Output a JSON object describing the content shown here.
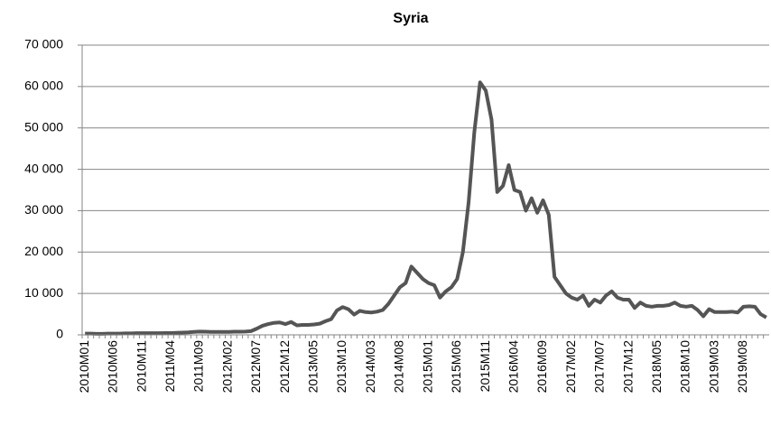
{
  "chart_data": {
    "type": "line",
    "title": "Syria",
    "categories": [
      "2010M01",
      null,
      null,
      null,
      null,
      "2010M06",
      null,
      null,
      null,
      null,
      "2010M11",
      null,
      null,
      null,
      null,
      "2011M04",
      null,
      null,
      null,
      null,
      "2011M09",
      null,
      null,
      null,
      null,
      "2012M02",
      null,
      null,
      null,
      null,
      "2012M07",
      null,
      null,
      null,
      null,
      "2012M12",
      null,
      null,
      null,
      null,
      "2013M05",
      null,
      null,
      null,
      null,
      "2013M10",
      null,
      null,
      null,
      null,
      "2014M03",
      null,
      null,
      null,
      null,
      "2014M08",
      null,
      null,
      null,
      null,
      "2015M01",
      null,
      null,
      null,
      null,
      "2015M06",
      null,
      null,
      null,
      null,
      "2015M11",
      null,
      null,
      null,
      null,
      "2016M04",
      null,
      null,
      null,
      null,
      "2016M09",
      null,
      null,
      null,
      null,
      "2017M02",
      null,
      null,
      null,
      null,
      "2017M07",
      null,
      null,
      null,
      null,
      "2017M12",
      null,
      null,
      null,
      null,
      "2018M05",
      null,
      null,
      null,
      null,
      "2018M10",
      null,
      null,
      null,
      null,
      "2019M03",
      null,
      null,
      null,
      null,
      "2019M08",
      null,
      null,
      null,
      null
    ],
    "series": [
      {
        "name": "Syria",
        "color": "#555555",
        "values": [
          300,
          300,
          250,
          250,
          300,
          300,
          300,
          350,
          350,
          400,
          400,
          400,
          400,
          400,
          450,
          450,
          500,
          550,
          600,
          700,
          800,
          750,
          700,
          700,
          700,
          700,
          750,
          750,
          800,
          900,
          1500,
          2200,
          2600,
          2900,
          3000,
          2600,
          3100,
          2300,
          2400,
          2400,
          2500,
          2700,
          3300,
          3800,
          5900,
          6700,
          6200,
          4900,
          5800,
          5500,
          5400,
          5600,
          6000,
          7500,
          9500,
          11500,
          12500,
          16500,
          15000,
          13500,
          12500,
          12000,
          9000,
          10500,
          11500,
          13500,
          20000,
          32000,
          49000,
          61000,
          59000,
          52000,
          34500,
          36000,
          41000,
          35000,
          34500,
          30000,
          33000,
          29500,
          32500,
          29000,
          14000,
          12000,
          10000,
          9000,
          8500,
          9500,
          7000,
          8500,
          7800,
          9500,
          10500,
          9000,
          8500,
          8500,
          6500,
          7800,
          7000,
          6800,
          7000,
          7000,
          7200,
          7800,
          7000,
          6800,
          7000,
          6000,
          4500,
          6200,
          5500,
          5500,
          5500,
          5600,
          5400,
          6800,
          6900,
          6800,
          5000,
          4200
        ]
      }
    ],
    "ylim": [
      0,
      70000
    ],
    "yticks": [
      0,
      {
        "value": 10000,
        "label": "10 000"
      },
      {
        "value": 20000,
        "label": "20 000"
      },
      {
        "value": 30000,
        "label": "30 000"
      },
      {
        "value": 40000,
        "label": "40 000"
      },
      {
        "value": 50000,
        "label": "50 000"
      },
      {
        "value": 60000,
        "label": "60 000"
      },
      {
        "value": 70000,
        "label": "70 000"
      }
    ],
    "grid": true
  }
}
